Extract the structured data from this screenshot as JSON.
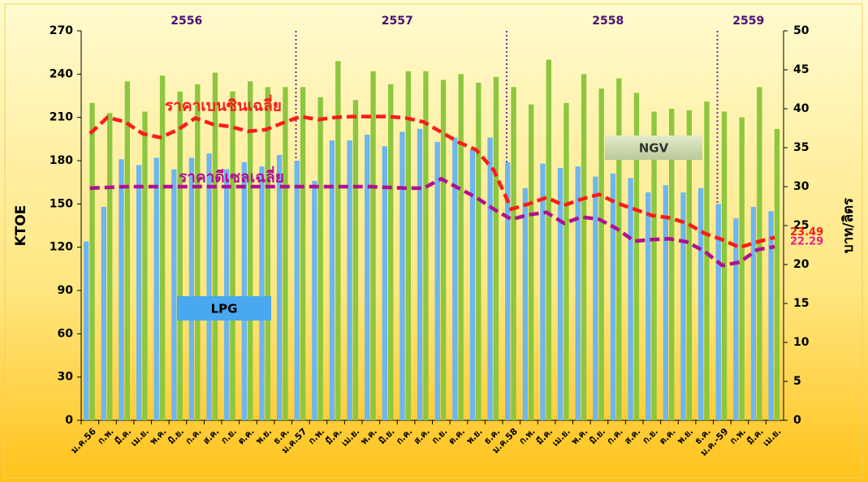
{
  "chart_data": {
    "type": "bar_line",
    "annotations": [
      "2556",
      "2557",
      "2558",
      "2559"
    ],
    "xlabel": null,
    "ylabel": "KTOE",
    "y2label": "บาท/ลิตร",
    "categories": [
      "ม.ค.56",
      "ก.พ.",
      "มี.ค.",
      "เม.ย.",
      "พ.ค.",
      "มิ.ย.",
      "ก.ค.",
      "ส.ค.",
      "ก.ย.",
      "ต.ค.",
      "พ.ย.",
      "ธ.ค.",
      "ม.ค.57",
      "ก.พ.",
      "มี.ค.",
      "เม.ย.",
      "พ.ค.",
      "มิ.ย.",
      "ก.ค.",
      "ส.ค.",
      "ก.ย.",
      "ต.ค.",
      "พ.ย.",
      "ธ.ค.",
      "ม.ค.58",
      "ก.พ.",
      "มี.ค.",
      "เม.ย.",
      "พ.ค.",
      "มิ.ย.",
      "ก.ค.",
      "ส.ค.",
      "ก.ย.",
      "ต.ค.",
      "พ.ย.",
      "ธ.ค.",
      "ม.ค.-59",
      "ก.พ.",
      "มี.ค.",
      "เม.ย."
    ],
    "ylim": [
      0,
      270
    ],
    "yticks": [
      0,
      30,
      60,
      90,
      120,
      150,
      180,
      210,
      240,
      270
    ],
    "y2lim": [
      0,
      50
    ],
    "y2ticks": [
      0,
      5,
      10,
      15,
      20,
      25,
      30,
      35,
      40,
      45,
      50
    ],
    "series": [
      {
        "name": "LPG",
        "type": "bar",
        "color": "#6db6f0",
        "values": [
          124,
          148,
          181,
          177,
          182,
          174,
          182,
          185,
          174,
          179,
          176,
          184,
          180,
          166,
          194,
          194,
          198,
          190,
          200,
          202,
          193,
          196,
          188,
          196,
          179,
          161,
          178,
          175,
          176,
          169,
          171,
          168,
          158,
          163,
          158,
          161,
          150,
          140,
          148,
          145
        ]
      },
      {
        "name": "NGV",
        "type": "bar",
        "color": "#8dc63f",
        "values": [
          220,
          213,
          235,
          214,
          239,
          228,
          233,
          241,
          228,
          235,
          231,
          231,
          231,
          224,
          249,
          222,
          242,
          233,
          242,
          242,
          236,
          240,
          234,
          238,
          231,
          219,
          250,
          220,
          240,
          230,
          237,
          227,
          214,
          216,
          215,
          221,
          214,
          210,
          231,
          202
        ]
      },
      {
        "name": "ราคาเบนซินเฉลี่ย",
        "type": "line",
        "axis": "y2",
        "color": "#ff1a1a",
        "label_last": true,
        "values": [
          36.8,
          38.9,
          38.3,
          36.8,
          36.3,
          37.3,
          38.8,
          38.0,
          37.7,
          37.1,
          37.3,
          38.2,
          39.0,
          38.6,
          38.9,
          39.0,
          39.0,
          39.0,
          38.8,
          38.3,
          37.0,
          35.7,
          34.7,
          32.1,
          27.1,
          27.8,
          28.6,
          27.6,
          28.4,
          29.0,
          27.9,
          27.1,
          26.3,
          26.0,
          25.3,
          24.0,
          23.2,
          22.2,
          22.9,
          23.49
        ]
      },
      {
        "name": "ราคาดีเซลเฉลี่ย",
        "type": "line",
        "axis": "y2",
        "color": "#b0108f",
        "label_color": "#e8208a",
        "label_last": true,
        "values": [
          29.8,
          29.9,
          30.0,
          30.0,
          30.0,
          30.0,
          30.0,
          30.0,
          30.0,
          30.0,
          30.0,
          30.0,
          30.0,
          30.0,
          30.0,
          30.0,
          30.0,
          29.9,
          29.8,
          29.8,
          31.0,
          29.8,
          28.6,
          27.1,
          25.8,
          26.4,
          26.7,
          25.3,
          26.1,
          25.8,
          24.6,
          23.0,
          23.2,
          23.3,
          22.9,
          21.7,
          19.9,
          20.3,
          21.9,
          22.29
        ]
      }
    ]
  }
}
